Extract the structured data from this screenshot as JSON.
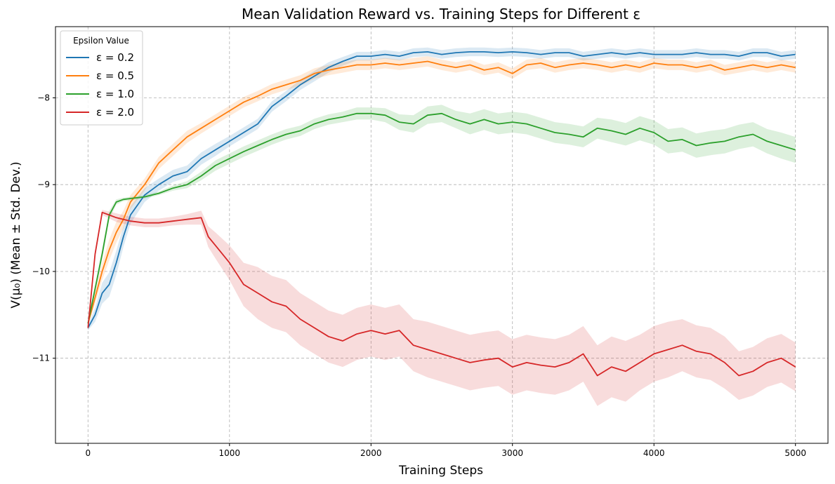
{
  "chart_data": {
    "type": "line",
    "title": "Mean Validation Reward vs. Training Steps for Different ε",
    "xlabel": "Training Steps",
    "ylabel": "V(μ₀) (Mean ± Std. Dev.)",
    "xlim": [
      -230,
      5230
    ],
    "ylim": [
      -11.98,
      -7.18
    ],
    "xticks": [
      0,
      1000,
      2000,
      3000,
      4000,
      5000
    ],
    "xtick_labels": [
      "0",
      "1000",
      "2000",
      "3000",
      "4000",
      "5000"
    ],
    "yticks": [
      -8,
      -9,
      -10,
      -11
    ],
    "ytick_labels": [
      "−8",
      "−9",
      "−10",
      "−11"
    ],
    "grid": true,
    "legend": {
      "title": "Epsilon Value",
      "position": "top-left"
    },
    "series": [
      {
        "name": "ε = 0.2",
        "color": "#1f77b4",
        "x": [
          0,
          50,
          100,
          150,
          200,
          250,
          300,
          400,
          500,
          600,
          700,
          800,
          900,
          1000,
          1100,
          1200,
          1300,
          1400,
          1500,
          1600,
          1700,
          1800,
          1900,
          2000,
          2100,
          2200,
          2300,
          2400,
          2500,
          2600,
          2700,
          2800,
          2900,
          3000,
          3100,
          3200,
          3300,
          3400,
          3500,
          3600,
          3700,
          3800,
          3900,
          4000,
          4100,
          4200,
          4300,
          4400,
          4500,
          4600,
          4700,
          4800,
          4900,
          5000
        ],
        "mean": [
          -10.65,
          -10.5,
          -10.25,
          -10.15,
          -9.9,
          -9.6,
          -9.35,
          -9.12,
          -9.0,
          -8.9,
          -8.85,
          -8.7,
          -8.6,
          -8.5,
          -8.4,
          -8.3,
          -8.1,
          -7.98,
          -7.85,
          -7.75,
          -7.65,
          -7.58,
          -7.52,
          -7.52,
          -7.5,
          -7.52,
          -7.48,
          -7.47,
          -7.5,
          -7.48,
          -7.47,
          -7.47,
          -7.48,
          -7.47,
          -7.48,
          -7.5,
          -7.48,
          -7.48,
          -7.52,
          -7.5,
          -7.48,
          -7.5,
          -7.48,
          -7.5,
          -7.5,
          -7.5,
          -7.48,
          -7.5,
          -7.5,
          -7.52,
          -7.48,
          -7.48,
          -7.52,
          -7.5
        ],
        "std": [
          0.03,
          0.08,
          0.12,
          0.14,
          0.14,
          0.12,
          0.1,
          0.08,
          0.07,
          0.07,
          0.07,
          0.07,
          0.07,
          0.06,
          0.06,
          0.06,
          0.06,
          0.06,
          0.06,
          0.06,
          0.06,
          0.05,
          0.05,
          0.05,
          0.05,
          0.05,
          0.05,
          0.05,
          0.05,
          0.05,
          0.05,
          0.05,
          0.05,
          0.05,
          0.05,
          0.05,
          0.05,
          0.05,
          0.05,
          0.05,
          0.05,
          0.05,
          0.05,
          0.05,
          0.05,
          0.05,
          0.05,
          0.05,
          0.05,
          0.05,
          0.05,
          0.05,
          0.05,
          0.05
        ]
      },
      {
        "name": "ε = 0.5",
        "color": "#ff7f0e",
        "x": [
          0,
          50,
          100,
          150,
          200,
          250,
          300,
          400,
          500,
          600,
          700,
          800,
          900,
          1000,
          1100,
          1200,
          1300,
          1400,
          1500,
          1600,
          1700,
          1800,
          1900,
          2000,
          2100,
          2200,
          2300,
          2400,
          2500,
          2600,
          2700,
          2800,
          2900,
          3000,
          3100,
          3200,
          3300,
          3400,
          3500,
          3600,
          3700,
          3800,
          3900,
          4000,
          4100,
          4200,
          4300,
          4400,
          4500,
          4600,
          4700,
          4800,
          4900,
          5000
        ],
        "mean": [
          -10.6,
          -10.3,
          -10.0,
          -9.75,
          -9.55,
          -9.4,
          -9.2,
          -9.0,
          -8.75,
          -8.6,
          -8.45,
          -8.35,
          -8.25,
          -8.15,
          -8.05,
          -7.98,
          -7.9,
          -7.85,
          -7.8,
          -7.72,
          -7.68,
          -7.65,
          -7.62,
          -7.62,
          -7.6,
          -7.62,
          -7.6,
          -7.58,
          -7.62,
          -7.65,
          -7.62,
          -7.68,
          -7.65,
          -7.72,
          -7.62,
          -7.6,
          -7.65,
          -7.62,
          -7.6,
          -7.62,
          -7.65,
          -7.62,
          -7.65,
          -7.6,
          -7.62,
          -7.62,
          -7.65,
          -7.62,
          -7.68,
          -7.65,
          -7.62,
          -7.65,
          -7.62,
          -7.65
        ],
        "std": [
          0.03,
          0.07,
          0.1,
          0.12,
          0.12,
          0.1,
          0.08,
          0.07,
          0.07,
          0.07,
          0.07,
          0.06,
          0.06,
          0.06,
          0.06,
          0.06,
          0.06,
          0.06,
          0.06,
          0.06,
          0.06,
          0.06,
          0.06,
          0.06,
          0.06,
          0.06,
          0.06,
          0.06,
          0.06,
          0.06,
          0.06,
          0.06,
          0.06,
          0.06,
          0.06,
          0.06,
          0.06,
          0.06,
          0.06,
          0.06,
          0.06,
          0.06,
          0.06,
          0.06,
          0.06,
          0.06,
          0.06,
          0.06,
          0.06,
          0.06,
          0.06,
          0.06,
          0.06,
          0.06
        ]
      },
      {
        "name": "ε = 1.0",
        "color": "#2ca02c",
        "x": [
          0,
          50,
          100,
          150,
          200,
          250,
          300,
          400,
          500,
          600,
          700,
          800,
          900,
          1000,
          1100,
          1200,
          1300,
          1400,
          1500,
          1600,
          1700,
          1800,
          1900,
          2000,
          2100,
          2200,
          2300,
          2400,
          2500,
          2600,
          2700,
          2800,
          2900,
          3000,
          3100,
          3200,
          3300,
          3400,
          3500,
          3600,
          3700,
          3800,
          3900,
          4000,
          4100,
          4200,
          4300,
          4400,
          4500,
          4600,
          4700,
          4800,
          4900,
          5000
        ],
        "mean": [
          -10.6,
          -10.2,
          -9.8,
          -9.35,
          -9.2,
          -9.17,
          -9.16,
          -9.14,
          -9.1,
          -9.04,
          -9.0,
          -8.9,
          -8.78,
          -8.7,
          -8.62,
          -8.55,
          -8.48,
          -8.42,
          -8.38,
          -8.3,
          -8.25,
          -8.22,
          -8.18,
          -8.18,
          -8.2,
          -8.28,
          -8.3,
          -8.2,
          -8.18,
          -8.25,
          -8.3,
          -8.25,
          -8.3,
          -8.28,
          -8.3,
          -8.35,
          -8.4,
          -8.42,
          -8.45,
          -8.35,
          -8.38,
          -8.42,
          -8.35,
          -8.4,
          -8.5,
          -8.48,
          -8.55,
          -8.52,
          -8.5,
          -8.45,
          -8.42,
          -8.5,
          -8.55,
          -8.6
        ],
        "std": [
          0.03,
          0.05,
          0.06,
          0.05,
          0.03,
          0.02,
          0.02,
          0.02,
          0.02,
          0.03,
          0.04,
          0.05,
          0.06,
          0.06,
          0.06,
          0.06,
          0.06,
          0.06,
          0.06,
          0.06,
          0.06,
          0.06,
          0.07,
          0.07,
          0.08,
          0.09,
          0.1,
          0.1,
          0.1,
          0.1,
          0.12,
          0.12,
          0.12,
          0.12,
          0.12,
          0.12,
          0.12,
          0.12,
          0.12,
          0.12,
          0.13,
          0.13,
          0.14,
          0.14,
          0.14,
          0.14,
          0.14,
          0.14,
          0.14,
          0.14,
          0.14,
          0.14,
          0.15,
          0.15
        ]
      },
      {
        "name": "ε = 2.0",
        "color": "#d62728",
        "x": [
          0,
          50,
          100,
          150,
          200,
          250,
          300,
          400,
          500,
          600,
          700,
          800,
          850,
          900,
          1000,
          1100,
          1200,
          1300,
          1400,
          1500,
          1600,
          1700,
          1800,
          1900,
          2000,
          2100,
          2200,
          2300,
          2400,
          2500,
          2600,
          2700,
          2800,
          2900,
          3000,
          3100,
          3200,
          3300,
          3400,
          3500,
          3600,
          3700,
          3800,
          3900,
          4000,
          4100,
          4200,
          4300,
          4400,
          4500,
          4600,
          4700,
          4800,
          4900,
          5000
        ],
        "mean": [
          -10.65,
          -9.8,
          -9.32,
          -9.35,
          -9.38,
          -9.4,
          -9.42,
          -9.44,
          -9.44,
          -9.42,
          -9.4,
          -9.38,
          -9.6,
          -9.7,
          -9.9,
          -10.15,
          -10.25,
          -10.35,
          -10.4,
          -10.55,
          -10.65,
          -10.75,
          -10.8,
          -10.72,
          -10.68,
          -10.72,
          -10.68,
          -10.85,
          -10.9,
          -10.95,
          -11.0,
          -11.05,
          -11.02,
          -11.0,
          -11.1,
          -11.05,
          -11.08,
          -11.1,
          -11.05,
          -10.95,
          -11.2,
          -11.1,
          -11.15,
          -11.05,
          -10.95,
          -10.9,
          -10.85,
          -10.92,
          -10.95,
          -11.05,
          -11.2,
          -11.15,
          -11.05,
          -11.0,
          -11.1
        ],
        "std": [
          0.03,
          0.04,
          0.03,
          0.04,
          0.05,
          0.05,
          0.05,
          0.05,
          0.05,
          0.05,
          0.06,
          0.08,
          0.12,
          0.15,
          0.2,
          0.25,
          0.3,
          0.3,
          0.3,
          0.3,
          0.3,
          0.3,
          0.3,
          0.3,
          0.3,
          0.3,
          0.3,
          0.3,
          0.32,
          0.32,
          0.32,
          0.32,
          0.32,
          0.32,
          0.32,
          0.32,
          0.32,
          0.32,
          0.32,
          0.32,
          0.35,
          0.35,
          0.35,
          0.32,
          0.32,
          0.32,
          0.3,
          0.3,
          0.3,
          0.3,
          0.28,
          0.28,
          0.28,
          0.28,
          0.28
        ]
      }
    ]
  }
}
